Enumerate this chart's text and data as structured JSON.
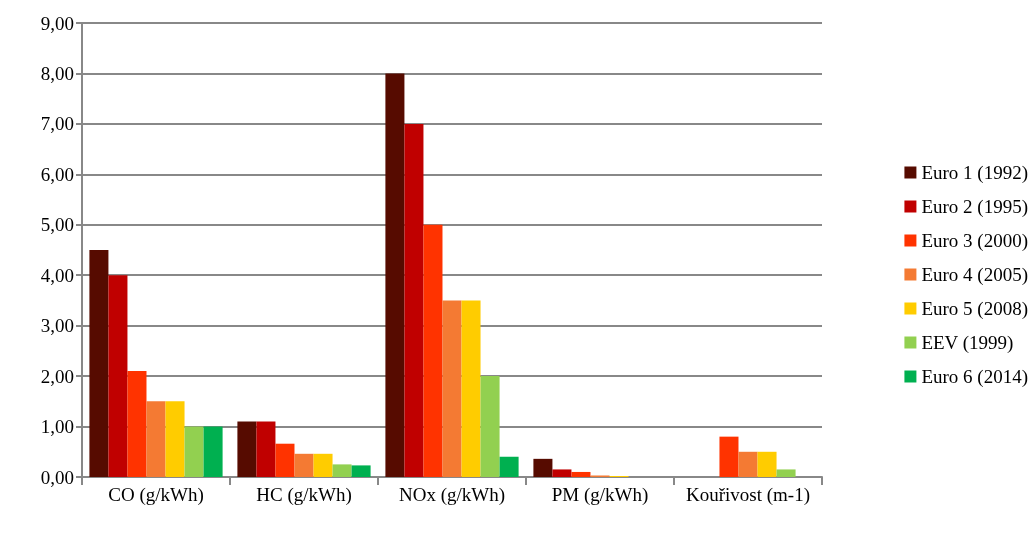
{
  "chart_data": {
    "type": "bar",
    "categories": [
      "CO (g/kWh)",
      "HC (g/kWh)",
      "NOx (g/kWh)",
      "PM (g/kWh)",
      "Kouřivost (m-1)"
    ],
    "series": [
      {
        "name": "Euro 1 (1992)",
        "color": "#560b00",
        "values": [
          4.5,
          1.1,
          8.0,
          0.36,
          null
        ]
      },
      {
        "name": "Euro 2 (1995)",
        "color": "#c00000",
        "values": [
          4.0,
          1.1,
          7.0,
          0.15,
          null
        ]
      },
      {
        "name": "Euro 3 (2000)",
        "color": "#ff3300",
        "values": [
          2.1,
          0.66,
          5.0,
          0.1,
          0.8
        ]
      },
      {
        "name": "Euro 4 (2005)",
        "color": "#f47a33",
        "values": [
          1.5,
          0.46,
          3.5,
          0.03,
          0.5
        ]
      },
      {
        "name": "Euro 5 (2008)",
        "color": "#ffcc00",
        "values": [
          1.5,
          0.46,
          3.5,
          0.02,
          0.5
        ]
      },
      {
        "name": "EEV (1999)",
        "color": "#92d050",
        "values": [
          1.0,
          0.25,
          2.0,
          null,
          0.15
        ]
      },
      {
        "name": "Euro 6 (2014)",
        "color": "#00b050",
        "values": [
          1.0,
          0.23,
          0.4,
          null,
          null
        ]
      }
    ],
    "ylim": [
      0,
      9
    ],
    "yticks": [
      {
        "value": 0,
        "label": "0,00"
      },
      {
        "value": 1,
        "label": "1,00"
      },
      {
        "value": 2,
        "label": "2,00"
      },
      {
        "value": 3,
        "label": "3,00"
      },
      {
        "value": 4,
        "label": "4,00"
      },
      {
        "value": 5,
        "label": "5,00"
      },
      {
        "value": 6,
        "label": "6,00"
      },
      {
        "value": 7,
        "label": "7,00"
      },
      {
        "value": 8,
        "label": "8,00"
      },
      {
        "value": 9,
        "label": "9,00"
      }
    ],
    "grid": "y",
    "legend": "right"
  }
}
